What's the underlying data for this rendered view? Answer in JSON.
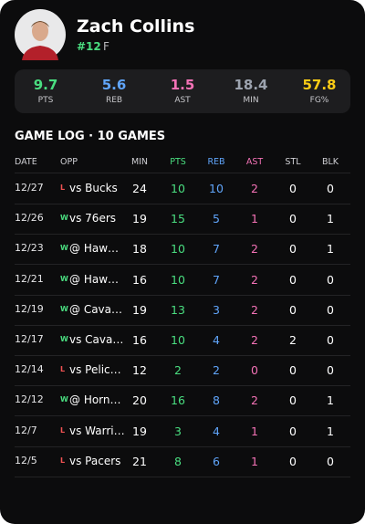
{
  "player": {
    "name": "Zach Collins",
    "number": "#12",
    "position": "F"
  },
  "summary": [
    {
      "value": 9.7,
      "label": "PTS"
    },
    {
      "value": 5.6,
      "label": "REB"
    },
    {
      "value": 1.5,
      "label": "AST"
    },
    {
      "value": 18.4,
      "label": "MIN"
    },
    {
      "value": 57.8,
      "label": "FG%"
    }
  ],
  "game_log": {
    "title": "GAME LOG · 10 GAMES",
    "columns": [
      "DATE",
      "OPP",
      "MIN",
      "PTS",
      "REB",
      "AST",
      "STL",
      "BLK"
    ],
    "rows": [
      [
        "12/27",
        "L",
        "vs Bucks",
        24,
        10,
        10,
        2,
        0,
        0
      ],
      [
        "12/26",
        "W",
        "vs 76ers",
        19,
        15,
        5,
        1,
        0,
        1
      ],
      [
        "12/23",
        "W",
        "@ Haw…",
        18,
        10,
        7,
        2,
        0,
        1
      ],
      [
        "12/21",
        "W",
        "@ Haw…",
        16,
        10,
        7,
        2,
        0,
        0
      ],
      [
        "12/19",
        "W",
        "@ Cava…",
        19,
        13,
        3,
        2,
        0,
        0
      ],
      [
        "12/17",
        "W",
        "vs Cava…",
        16,
        10,
        4,
        2,
        2,
        0
      ],
      [
        "12/14",
        "L",
        "vs Pelic…",
        12,
        2,
        2,
        0,
        0,
        0
      ],
      [
        "12/12",
        "W",
        "@ Horn…",
        20,
        16,
        8,
        2,
        0,
        1
      ],
      [
        "12/7",
        "L",
        "vs Warri…",
        19,
        3,
        4,
        1,
        0,
        1
      ],
      [
        "12/5",
        "L",
        "vs Pacers",
        21,
        8,
        6,
        1,
        0,
        0
      ]
    ]
  }
}
